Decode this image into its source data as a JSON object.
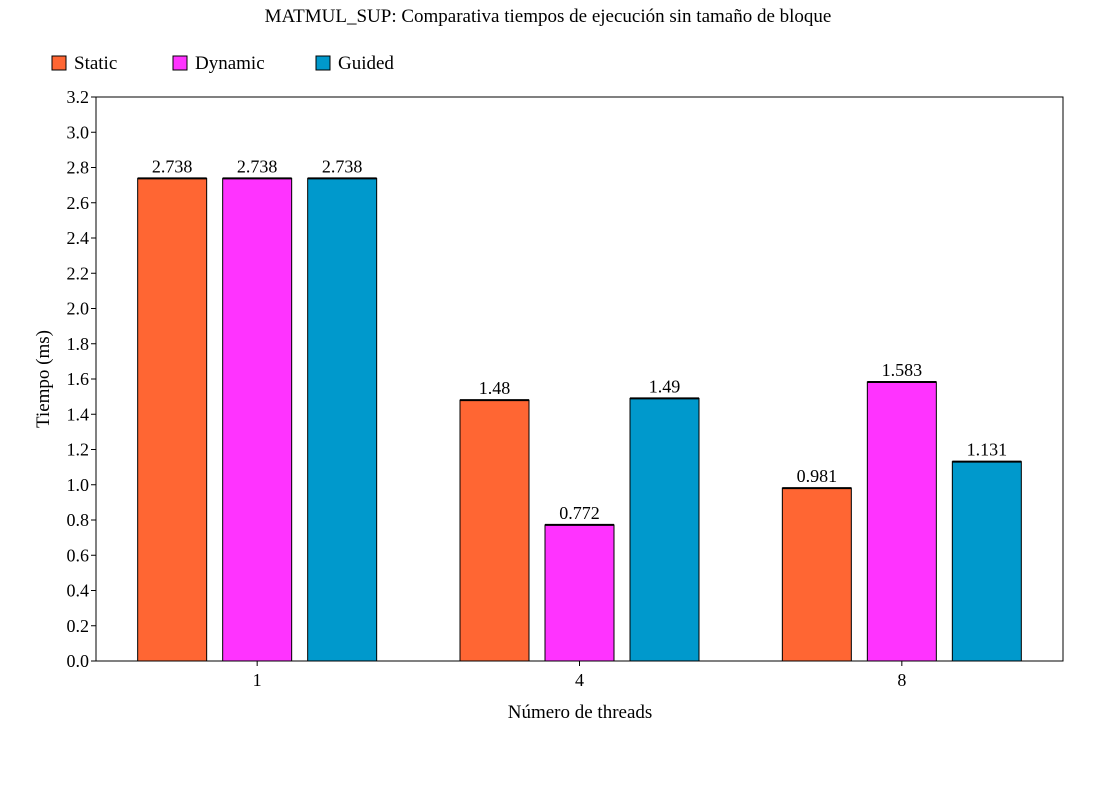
{
  "chart_data": {
    "type": "bar",
    "title": "MATMUL_SUP: Comparativa tiempos de ejecución sin tamaño de bloque",
    "xlabel": "Número de threads",
    "ylabel": "Tiempo (ms)",
    "categories": [
      "1",
      "4",
      "8"
    ],
    "series": [
      {
        "name": "Static",
        "color": "#ff6633",
        "values": [
          2.738,
          1.48,
          0.981
        ],
        "labels": [
          "2.738",
          "1.48",
          "0.981"
        ]
      },
      {
        "name": "Dynamic",
        "color": "#ff33ff",
        "values": [
          2.738,
          0.772,
          1.583
        ],
        "labels": [
          "2.738",
          "0.772",
          "1.583"
        ]
      },
      {
        "name": "Guided",
        "color": "#0099cc",
        "values": [
          2.738,
          1.49,
          1.131
        ],
        "labels": [
          "2.738",
          "1.49",
          "1.131"
        ]
      }
    ],
    "ylim": [
      0,
      3.2
    ],
    "yticks": [
      "0.0",
      "0.2",
      "0.4",
      "0.6",
      "0.8",
      "1.0",
      "1.2",
      "1.4",
      "1.6",
      "1.8",
      "2.0",
      "2.2",
      "2.4",
      "2.6",
      "2.8",
      "3.0",
      "3.2"
    ],
    "grid": false,
    "legend_position": "top-left"
  }
}
